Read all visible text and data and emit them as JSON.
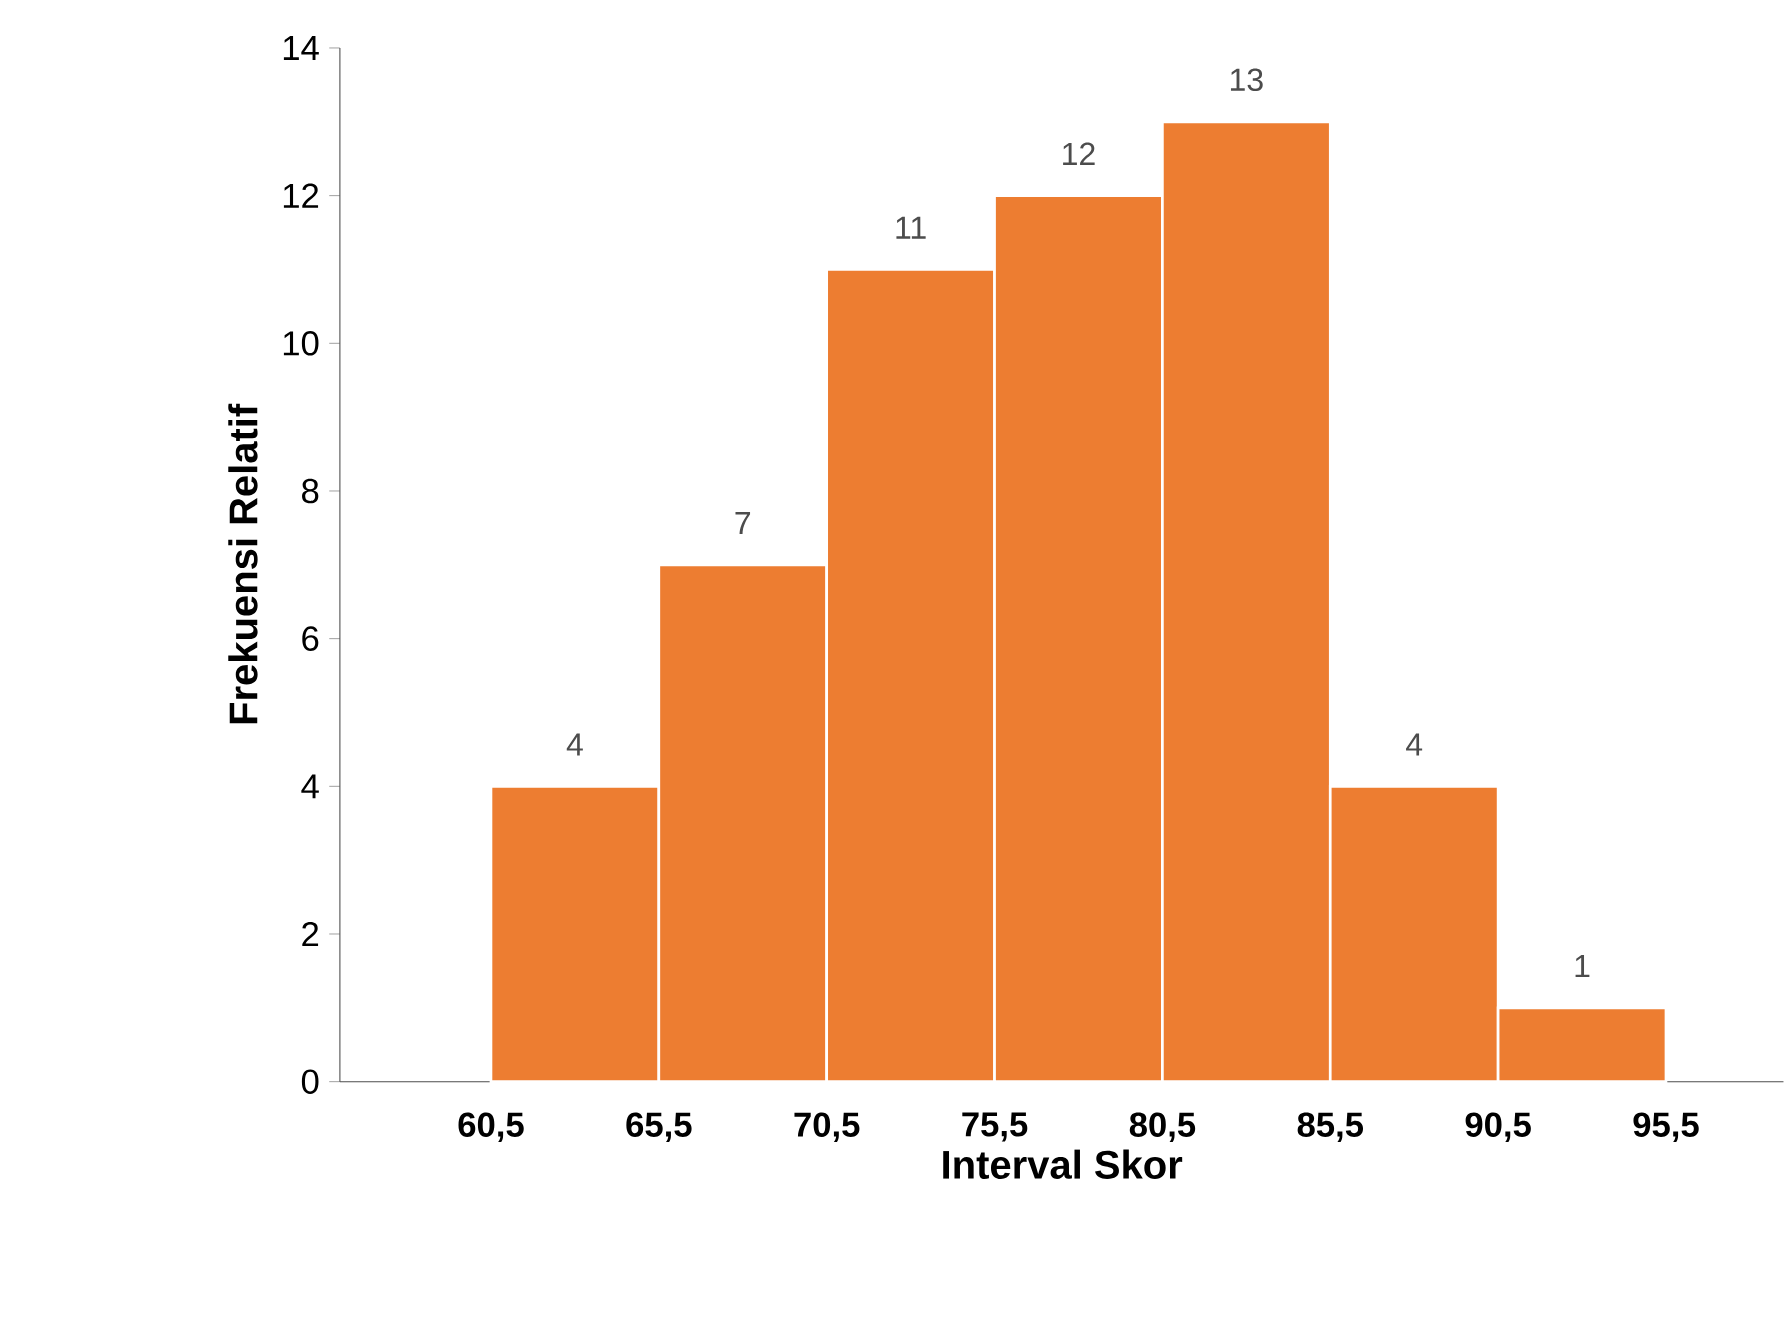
{
  "chart_data": {
    "type": "histogram",
    "bins": [
      60.5,
      65.5,
      70.5,
      75.5,
      80.5,
      85.5,
      90.5,
      95.5
    ],
    "values": [
      4,
      7,
      11,
      12,
      13,
      4,
      1
    ],
    "color": "#ed7d31",
    "xlabel": "Interval Skor",
    "ylabel": "Frekuensi Relatif",
    "xlim": [
      56,
      99
    ],
    "ylim": [
      0,
      14
    ],
    "xticks": [
      {
        "value": 60.5,
        "label": "60,5"
      },
      {
        "value": 65.5,
        "label": "65,5"
      },
      {
        "value": 70.5,
        "label": "70,5"
      },
      {
        "value": 75.5,
        "label": "75,5"
      },
      {
        "value": 80.5,
        "label": "80,5"
      },
      {
        "value": 85.5,
        "label": "85,5"
      },
      {
        "value": 90.5,
        "label": "90,5"
      },
      {
        "value": 95.5,
        "label": "95,5"
      }
    ],
    "yticks": [
      0,
      2,
      4,
      6,
      8,
      10,
      12,
      14
    ],
    "data_labels": true
  }
}
